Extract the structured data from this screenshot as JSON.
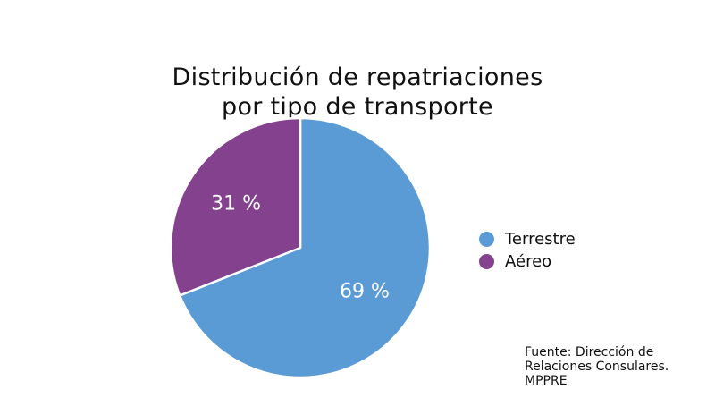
{
  "chart_data": {
    "type": "pie",
    "title_lines": [
      "Distribución de repatriaciones",
      "por tipo de transporte"
    ],
    "slices": [
      {
        "label": "Terrestre",
        "value": 69,
        "value_label": "69 %",
        "color": "#5b9bd5"
      },
      {
        "label": "Aéreo",
        "value": 31,
        "value_label": "31 %",
        "color": "#84418e"
      }
    ],
    "legend_position": "right"
  },
  "source_lines": [
    "Fuente: Dirección de",
    "Relaciones Consulares.",
    "MPPRE"
  ]
}
